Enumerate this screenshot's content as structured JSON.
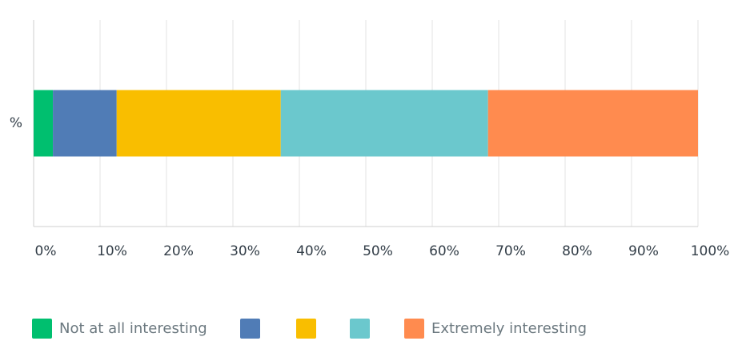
{
  "chart_data": {
    "type": "stacked-bar-horizontal",
    "categories": [
      "%"
    ],
    "series": [
      {
        "name": "Not at all interesting",
        "color": "#00bf6f",
        "values": [
          2.9
        ]
      },
      {
        "name": null,
        "color": "#507cb6",
        "values": [
          9.6
        ]
      },
      {
        "name": null,
        "color": "#f9be00",
        "values": [
          24.7
        ]
      },
      {
        "name": null,
        "color": "#6bc8cd",
        "values": [
          31.2
        ]
      },
      {
        "name": "Extremely interesting",
        "color": "#ff8b4f",
        "values": [
          31.6
        ]
      }
    ],
    "xlim": [
      0,
      100
    ],
    "xticks": [
      {
        "value": 0,
        "label": "0%"
      },
      {
        "value": 10,
        "label": "10%"
      },
      {
        "value": 20,
        "label": "20%"
      },
      {
        "value": 30,
        "label": "30%"
      },
      {
        "value": 40,
        "label": "40%"
      },
      {
        "value": 50,
        "label": "50%"
      },
      {
        "value": 60,
        "label": "60%"
      },
      {
        "value": 70,
        "label": "70%"
      },
      {
        "value": 80,
        "label": "80%"
      },
      {
        "value": 90,
        "label": "90%"
      },
      {
        "value": 100,
        "label": "100%"
      }
    ],
    "grid": true
  }
}
